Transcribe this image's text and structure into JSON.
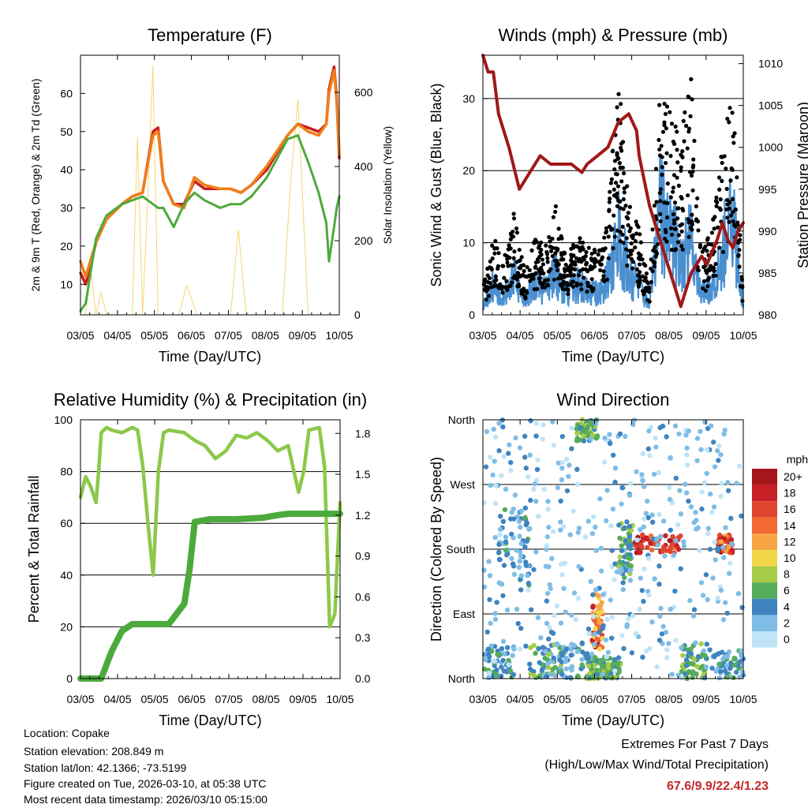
{
  "chart_data": [
    {
      "type": "line",
      "id": "temperature",
      "title": "Temperature (F)",
      "xlabel": "Time (Day/UTC)",
      "ylabel": "2m & 9m T (Red, Orange) & 2m Td (Green)",
      "y2label": "Solar Insolation (Yellow)",
      "xlim": [
        0,
        5
      ],
      "ylim": [
        2,
        70
      ],
      "y2lim": [
        0,
        700
      ],
      "xticks": [
        "03/05",
        "04/05",
        "05/05",
        "06/05",
        "07/05",
        "08/05",
        "09/05",
        "10/05"
      ],
      "yticks": [
        10,
        20,
        30,
        40,
        50,
        60
      ],
      "y2ticks": [
        0,
        200,
        400,
        600
      ],
      "series": [
        {
          "name": "2m T",
          "color": "#c8201e",
          "x": [
            0,
            0.1,
            0.3,
            0.5,
            0.8,
            1.0,
            1.2,
            1.4,
            1.5,
            1.6,
            1.8,
            2.0,
            2.2,
            2.4,
            2.7,
            2.9,
            3.1,
            3.3,
            3.6,
            4.0,
            4.2,
            4.4,
            4.6,
            4.75,
            4.8,
            4.9,
            4.95,
            5.0
          ],
          "values": [
            13,
            10,
            21,
            27,
            31,
            33,
            34,
            50,
            51,
            37,
            31,
            31,
            37,
            35,
            35,
            35,
            34,
            36,
            40,
            49,
            52,
            51,
            50,
            52,
            61,
            67,
            59,
            43
          ]
        },
        {
          "name": "9m T",
          "color": "#f07e1a",
          "x": [
            0,
            0.1,
            0.3,
            0.5,
            0.8,
            1.0,
            1.2,
            1.4,
            1.5,
            1.6,
            1.8,
            2.0,
            2.2,
            2.4,
            2.7,
            2.9,
            3.1,
            3.3,
            3.6,
            4.0,
            4.2,
            4.4,
            4.6,
            4.75,
            4.8,
            4.9,
            4.95,
            5.0
          ],
          "values": [
            16,
            12,
            21,
            27,
            31,
            33,
            34,
            49,
            50,
            37,
            31,
            30,
            38,
            36,
            35,
            35,
            34,
            36,
            41,
            49,
            52,
            50,
            49,
            52,
            60,
            66,
            58,
            44
          ]
        },
        {
          "name": "2m Td",
          "color": "#4caa3c",
          "x": [
            0,
            0.1,
            0.3,
            0.5,
            0.8,
            1.0,
            1.2,
            1.4,
            1.5,
            1.6,
            1.8,
            2.0,
            2.2,
            2.4,
            2.7,
            2.9,
            3.1,
            3.3,
            3.6,
            4.0,
            4.2,
            4.4,
            4.6,
            4.75,
            4.8,
            4.9,
            4.95,
            5.0
          ],
          "values": [
            3,
            5,
            22,
            28,
            31,
            32,
            33,
            31,
            30,
            30,
            25,
            31,
            34,
            32,
            30,
            31,
            31,
            33,
            38,
            48,
            49,
            42,
            34,
            26,
            16,
            25,
            30,
            33
          ]
        },
        {
          "name": "Solar Insolation",
          "color": "#f5d76e",
          "axis": "y2",
          "x": [
            0,
            0.1,
            0.2,
            0.3,
            0.4,
            0.5,
            0.9,
            1.0,
            1.1,
            1.2,
            1.3,
            1.4,
            1.5,
            1.9,
            2.05,
            2.25,
            2.4,
            2.9,
            3.05,
            3.2,
            3.3,
            3.4,
            3.9,
            4.05,
            4.2,
            4.4,
            4.5,
            4.9,
            5.0
          ],
          "values": [
            0,
            0,
            120,
            0,
            60,
            0,
            0,
            0,
            480,
            0,
            320,
            670,
            0,
            0,
            80,
            0,
            0,
            0,
            230,
            0,
            0,
            0,
            0,
            340,
            580,
            0,
            0,
            0,
            0
          ]
        }
      ]
    },
    {
      "type": "line",
      "id": "winds",
      "title": "Winds (mph) & Pressure (mb)",
      "xlabel": "Time (Day/UTC)",
      "ylabel": "Sonic Wind & Gust (Blue, Black)",
      "y2label": "Station Pressure (Maroon)",
      "xlim": [
        0,
        5
      ],
      "ylim": [
        0,
        36
      ],
      "y2lim": [
        980,
        1011
      ],
      "xticks": [
        "03/05",
        "04/05",
        "05/05",
        "06/05",
        "07/05",
        "08/05",
        "09/05",
        "10/05"
      ],
      "yticks": [
        0,
        10,
        20,
        30
      ],
      "y2ticks": [
        980,
        985,
        990,
        995,
        1000,
        1005,
        1010
      ],
      "series": [
        {
          "name": "Sonic Wind",
          "color": "#4a90d0",
          "x": [
            0,
            0.2,
            0.4,
            0.6,
            0.8,
            1.0,
            1.2,
            1.4,
            1.6,
            1.8,
            2.0,
            2.2,
            2.4,
            2.6,
            2.8,
            3.0,
            3.2,
            3.4,
            3.6,
            3.8,
            4.0,
            4.2,
            4.4,
            4.6,
            4.8,
            5.0
          ],
          "values": [
            2,
            6,
            4,
            7,
            3,
            6,
            5,
            8,
            4,
            6,
            5,
            4,
            7,
            16,
            8,
            6,
            2,
            20,
            15,
            12,
            14,
            4,
            6,
            13,
            18,
            2
          ]
        },
        {
          "name": "Gust",
          "color": "#000000",
          "x": [
            0,
            0.2,
            0.4,
            0.6,
            0.8,
            1.0,
            1.2,
            1.4,
            1.6,
            1.8,
            2.0,
            2.2,
            2.4,
            2.6,
            2.8,
            3.0,
            3.2,
            3.4,
            3.6,
            3.8,
            4.0,
            4.2,
            4.4,
            4.6,
            4.8,
            5.0
          ],
          "values": [
            4,
            10,
            7,
            13,
            6,
            10,
            9,
            14,
            7,
            10,
            9,
            8,
            12,
            32,
            14,
            11,
            4,
            28,
            26,
            24,
            30,
            8,
            11,
            22,
            28,
            3
          ]
        },
        {
          "name": "Station Pressure",
          "color": "#a01818",
          "axis": "y2",
          "x": [
            0,
            0.1,
            0.2,
            0.3,
            0.5,
            0.7,
            0.9,
            1.1,
            1.3,
            1.5,
            1.7,
            1.9,
            2.0,
            2.2,
            2.4,
            2.6,
            2.8,
            2.95,
            3.0,
            3.2,
            3.4,
            3.6,
            3.8,
            3.9,
            4.0,
            4.2,
            4.3,
            4.5,
            4.6,
            4.7,
            4.8,
            4.9,
            5.0
          ],
          "values": [
            1011,
            1009,
            1009,
            1004,
            1000,
            995,
            997,
            999,
            998,
            998,
            998,
            997,
            998,
            999,
            1000,
            1003,
            1004,
            1002,
            999,
            993,
            989,
            985,
            981,
            983,
            985,
            987,
            986,
            989,
            991,
            989,
            988,
            990,
            991
          ]
        }
      ]
    },
    {
      "type": "line",
      "id": "humidity",
      "title": "Relative Humidity (%) & Precipitation (in)",
      "xlabel": "Time (Day/UTC)",
      "ylabel": "Percent & Total Rainfall",
      "xlim": [
        0,
        5
      ],
      "ylim": [
        0,
        100
      ],
      "y2lim": [
        0,
        1.9
      ],
      "xticks": [
        "03/05",
        "04/05",
        "05/05",
        "06/05",
        "07/05",
        "08/05",
        "09/05",
        "10/05"
      ],
      "yticks": [
        0,
        20,
        40,
        60,
        80,
        100
      ],
      "y2ticks": [
        0.0,
        0.3,
        0.6,
        0.9,
        1.2,
        1.5,
        1.8
      ],
      "series": [
        {
          "name": "Relative Humidity",
          "color": "#8cc84a",
          "x": [
            0,
            0.1,
            0.2,
            0.3,
            0.35,
            0.4,
            0.5,
            0.6,
            0.8,
            1.0,
            1.1,
            1.2,
            1.3,
            1.4,
            1.5,
            1.6,
            1.7,
            2.0,
            2.2,
            2.4,
            2.6,
            2.8,
            3.0,
            3.2,
            3.4,
            3.6,
            3.8,
            4.0,
            4.2,
            4.3,
            4.4,
            4.6,
            4.7,
            4.8,
            4.9,
            5.0
          ],
          "values": [
            70,
            78,
            74,
            68,
            80,
            95,
            97,
            96,
            95,
            97,
            96,
            82,
            60,
            40,
            80,
            95,
            96,
            95,
            92,
            90,
            85,
            88,
            94,
            93,
            95,
            92,
            88,
            90,
            72,
            80,
            96,
            97,
            82,
            20,
            25,
            68
          ]
        },
        {
          "name": "Total Rainfall",
          "color": "#4caa3c",
          "axis": "y2",
          "x": [
            0,
            0.4,
            0.5,
            0.6,
            0.8,
            1.0,
            1.1,
            1.5,
            1.7,
            1.8,
            2.0,
            2.1,
            2.2,
            2.5,
            3.0,
            3.5,
            3.8,
            4.0,
            4.5,
            5.0
          ],
          "values": [
            0,
            0,
            0.1,
            0.2,
            0.35,
            0.4,
            0.4,
            0.4,
            0.4,
            0.45,
            0.55,
            0.8,
            1.15,
            1.17,
            1.17,
            1.18,
            1.2,
            1.21,
            1.21,
            1.21
          ]
        }
      ]
    },
    {
      "type": "scatter",
      "id": "wind-direction",
      "title": "Wind Direction",
      "xlabel": "Time (Day/UTC)",
      "ylabel": "Direction (Colored By Speed)",
      "xlim": [
        0,
        5
      ],
      "ylim": [
        0,
        360
      ],
      "xticks": [
        "03/05",
        "04/05",
        "05/05",
        "06/05",
        "07/05",
        "08/05",
        "09/05",
        "10/05"
      ],
      "yticks": [
        {
          "value": 0,
          "label": "North"
        },
        {
          "value": 90,
          "label": "East"
        },
        {
          "value": 180,
          "label": "South"
        },
        {
          "value": 270,
          "label": "West"
        },
        {
          "value": 360,
          "label": "North"
        }
      ],
      "colorbar": {
        "title": "mph",
        "labels": [
          "20+",
          "18",
          "16",
          "14",
          "12",
          "10",
          "8",
          "6",
          "4",
          "2",
          "0"
        ],
        "colors": [
          "#a5161b",
          "#c72026",
          "#e04530",
          "#f26a32",
          "#f7a545",
          "#f2d64a",
          "#a6cc45",
          "#55ac5a",
          "#3f84c0",
          "#7fbde6",
          "#bfe4f8"
        ]
      },
      "clusters": [
        {
          "x": [
            0,
            0.6
          ],
          "y": [
            0,
            45
          ],
          "speed": [
            2,
            6
          ]
        },
        {
          "x": [
            0.3,
            0.9
          ],
          "y": [
            130,
            240
          ],
          "speed": [
            2,
            6
          ]
        },
        {
          "x": [
            0.9,
            1.5
          ],
          "y": [
            0,
            50
          ],
          "speed": [
            2,
            8
          ]
        },
        {
          "x": [
            1.4,
            2.2
          ],
          "y": [
            0,
            50
          ],
          "speed": [
            2,
            6
          ]
        },
        {
          "x": [
            1.8,
            2.2
          ],
          "y": [
            330,
            360
          ],
          "speed": [
            4,
            8
          ]
        },
        {
          "x": [
            2.0,
            2.4
          ],
          "y": [
            0,
            30
          ],
          "speed": [
            4,
            8
          ]
        },
        {
          "x": [
            2.1,
            2.3
          ],
          "y": [
            40,
            120
          ],
          "speed": [
            10,
            18
          ]
        },
        {
          "x": [
            2.3,
            2.65
          ],
          "y": [
            0,
            30
          ],
          "speed": [
            4,
            8
          ]
        },
        {
          "x": [
            2.6,
            2.9
          ],
          "y": [
            140,
            220
          ],
          "speed": [
            2,
            8
          ]
        },
        {
          "x": [
            2.9,
            3.8
          ],
          "y": [
            175,
            200
          ],
          "speed": [
            14,
            20
          ]
        },
        {
          "x": [
            3.8,
            4.3
          ],
          "y": [
            0,
            50
          ],
          "speed": [
            4,
            8
          ]
        },
        {
          "x": [
            4.5,
            4.8
          ],
          "y": [
            175,
            200
          ],
          "speed": [
            12,
            20
          ]
        },
        {
          "x": [
            4.4,
            5.0
          ],
          "y": [
            0,
            40
          ],
          "speed": [
            2,
            6
          ]
        },
        {
          "x": [
            0,
            5.0
          ],
          "y": [
            0,
            360
          ],
          "speed": [
            0,
            4
          ]
        }
      ]
    }
  ],
  "info": {
    "location": "Location: Copake",
    "elevation": "Station elevation: 208.849 m",
    "latlon": "Station lat/lon: 42.1366; -73.5199",
    "created": "Figure created on Tue, 2026-03-10, at 05:38 UTC",
    "recent": "Most recent data timestamp: 2026/03/10 05:15:00"
  },
  "extremes": {
    "title": "Extremes For Past 7 Days",
    "subtitle": "(High/Low/Max Wind/Total Precipitation)",
    "values": "67.6/9.9/22.4/1.23"
  }
}
